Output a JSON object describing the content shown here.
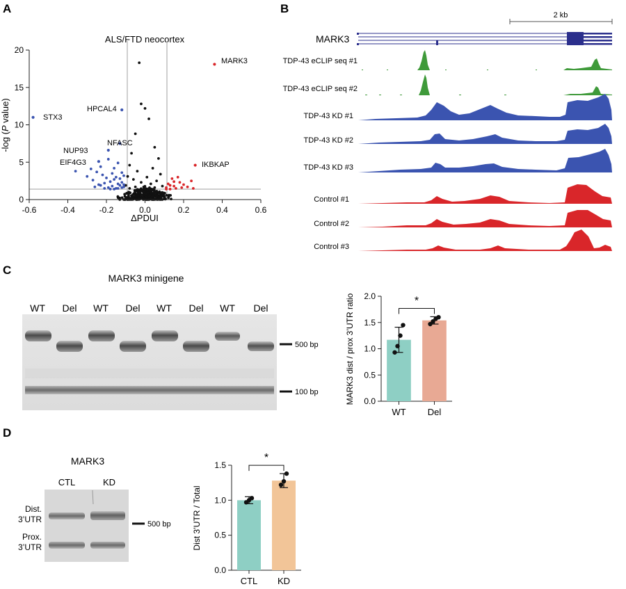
{
  "panels": {
    "a": {
      "letter": "A",
      "title": "ALS/FTD neocortex",
      "ylabel_prefix": "-log (",
      "ylabel_italic": "P",
      "ylabel_suffix": " value)",
      "xlabel": "ΔPDUI",
      "x_ticks": [
        "-0.6",
        "-0.4",
        "-0.2",
        "0.0",
        "0.2",
        "0.4",
        "0.6"
      ],
      "y_ticks": [
        "0",
        "5",
        "10",
        "15",
        "20"
      ],
      "labels": {
        "mark3": "MARK3",
        "stx3": "STX3",
        "hpcal4": "HPCAL4",
        "nfasc": "NFASC",
        "nup93": "NUP93",
        "eif4g3": "EIF4G3",
        "ikbkap": "IKBKAP"
      }
    },
    "b": {
      "letter": "B",
      "gene": "MARK3",
      "scale": "2 kb",
      "tracks": [
        "TDP-43 eCLIP seq #1",
        "TDP-43 eCLIP seq #2",
        "TDP-43 KD #1",
        "TDP-43 KD #2",
        "TDP-43 KD #3",
        "Control #1",
        "Control #2",
        "Control #3"
      ]
    },
    "c": {
      "letter": "C",
      "title": "MARK3 minigene",
      "lanes": [
        "WT",
        "Del",
        "WT",
        "Del",
        "WT",
        "Del",
        "WT",
        "Del"
      ],
      "markers": [
        "500 bp",
        "100 bp"
      ],
      "ylabel": "MARK3 dist / prox 3’UTR ratio",
      "significance": "*"
    },
    "d": {
      "letter": "D",
      "title": "MARK3",
      "lanes": [
        "CTL",
        "KD"
      ],
      "band_dist": [
        "Dist.",
        "3’UTR"
      ],
      "band_prox": [
        "Prox.",
        "3’UTR"
      ],
      "marker": "500 bp",
      "ylabel": "Dist 3’UTR / Total",
      "significance": "*"
    }
  },
  "colors": {
    "blue": "#3b54b0",
    "red": "#d9262a",
    "green": "#3f9a3a",
    "black": "#111111",
    "teal": "#8ecfc4",
    "salmon": "#e8a994",
    "peach": "#f2c598",
    "navy": "#2b2f8c"
  },
  "chart_data": [
    {
      "type": "scatter",
      "title": "ALS/FTD neocortex",
      "xlabel": "ΔPDUI",
      "ylabel": "-log (P value)",
      "xlim": [
        -0.6,
        0.6
      ],
      "ylim": [
        0,
        20
      ],
      "thresholds": {
        "x": [
          -0.1,
          0.1
        ],
        "y": 1.3
      },
      "labeled_points": [
        {
          "name": "MARK3",
          "x": 0.36,
          "y": 18.1,
          "group": "up"
        },
        {
          "name": "STX3",
          "x": -0.58,
          "y": 11.0,
          "group": "down"
        },
        {
          "name": "HPCAL4",
          "x": -0.12,
          "y": 12.0,
          "group": "down"
        },
        {
          "name": "NFASC",
          "x": -0.13,
          "y": 7.5,
          "group": "down"
        },
        {
          "name": "NUP93",
          "x": -0.19,
          "y": 6.6,
          "group": "down"
        },
        {
          "name": "EIF4G3",
          "x": -0.24,
          "y": 5.1,
          "group": "down"
        },
        {
          "name": "IKBKAP",
          "x": 0.26,
          "y": 4.6,
          "group": "up"
        }
      ],
      "down_points": [
        [
          -0.36,
          3.8
        ],
        [
          -0.3,
          3.1
        ],
        [
          -0.28,
          4.1
        ],
        [
          -0.27,
          2.6
        ],
        [
          -0.25,
          3.7
        ],
        [
          -0.24,
          2.0
        ],
        [
          -0.23,
          4.4
        ],
        [
          -0.22,
          3.3
        ],
        [
          -0.21,
          2.2
        ],
        [
          -0.2,
          2.9
        ],
        [
          -0.19,
          1.6
        ],
        [
          -0.19,
          5.4
        ],
        [
          -0.18,
          2.4
        ],
        [
          -0.17,
          3.5
        ],
        [
          -0.17,
          1.8
        ],
        [
          -0.16,
          4.2
        ],
        [
          -0.16,
          2.7
        ],
        [
          -0.15,
          1.5
        ],
        [
          -0.15,
          3.0
        ],
        [
          -0.14,
          2.1
        ],
        [
          -0.14,
          4.9
        ],
        [
          -0.13,
          1.9
        ],
        [
          -0.13,
          2.8
        ],
        [
          -0.12,
          3.6
        ],
        [
          -0.12,
          1.6
        ],
        [
          -0.12,
          2.3
        ],
        [
          -0.11,
          1.7
        ],
        [
          -0.11,
          3.2
        ],
        [
          -0.11,
          2.0
        ],
        [
          -0.18,
          1.4
        ],
        [
          -0.21,
          1.5
        ],
        [
          -0.26,
          1.7
        ],
        [
          -0.23,
          1.9
        ],
        [
          -0.16,
          1.4
        ],
        [
          -0.14,
          1.5
        ]
      ],
      "up_points": [
        [
          0.11,
          1.6
        ],
        [
          0.12,
          2.1
        ],
        [
          0.13,
          1.4
        ],
        [
          0.14,
          2.8
        ],
        [
          0.15,
          1.8
        ],
        [
          0.16,
          1.5
        ],
        [
          0.17,
          3.0
        ],
        [
          0.18,
          2.3
        ],
        [
          0.19,
          1.6
        ],
        [
          0.2,
          2.0
        ],
        [
          0.22,
          1.7
        ],
        [
          0.24,
          2.5
        ],
        [
          0.25,
          1.5
        ],
        [
          0.13,
          1.9
        ],
        [
          0.15,
          2.4
        ],
        [
          0.11,
          1.4
        ]
      ],
      "ns_points": [
        [
          -0.03,
          18.3
        ],
        [
          -0.02,
          12.8
        ],
        [
          0.0,
          12.2
        ],
        [
          -0.05,
          8.8
        ],
        [
          0.02,
          10.8
        ],
        [
          0.05,
          7.0
        ],
        [
          -0.07,
          6.2
        ],
        [
          0.07,
          5.5
        ],
        [
          -0.08,
          4.6
        ],
        [
          0.04,
          4.2
        ],
        [
          -0.04,
          3.8
        ],
        [
          0.08,
          3.4
        ],
        [
          -0.09,
          3.1
        ],
        [
          0.01,
          3.0
        ],
        [
          -0.06,
          2.7
        ],
        [
          0.06,
          2.5
        ],
        [
          -0.02,
          2.3
        ],
        [
          0.03,
          2.1
        ],
        [
          -0.1,
          1.9
        ],
        [
          0.09,
          1.8
        ],
        [
          -0.05,
          1.7
        ],
        [
          0.05,
          1.6
        ],
        [
          -0.08,
          1.5
        ],
        [
          0.0,
          1.4
        ]
      ],
      "ns_cloud_count": 320
    },
    {
      "type": "bar",
      "title": "MARK3 minigene",
      "categories": [
        "WT",
        "Del"
      ],
      "values": [
        1.17,
        1.54
      ],
      "errors": [
        0.24,
        0.07
      ],
      "points": [
        [
          0.93,
          1.05,
          1.25,
          1.45
        ],
        [
          1.47,
          1.52,
          1.57,
          1.6
        ]
      ],
      "ylabel": "MARK3 dist / prox 3’UTR ratio",
      "ylim": [
        0,
        2.0
      ],
      "y_ticks": [
        "0.0",
        "0.5",
        "1.0",
        "1.5",
        "2.0"
      ],
      "significance": "*"
    },
    {
      "type": "bar",
      "title": "MARK3",
      "categories": [
        "CTL",
        "KD"
      ],
      "values": [
        1.0,
        1.28
      ],
      "errors": [
        0.05,
        0.1
      ],
      "points": [
        [
          0.97,
          1.0,
          1.03
        ],
        [
          1.22,
          1.27,
          1.38
        ]
      ],
      "ylabel": "Dist 3’UTR / Total",
      "ylim": [
        0,
        1.5
      ],
      "y_ticks": [
        "0.0",
        "0.5",
        "1.0",
        "1.5"
      ],
      "significance": "*"
    }
  ]
}
